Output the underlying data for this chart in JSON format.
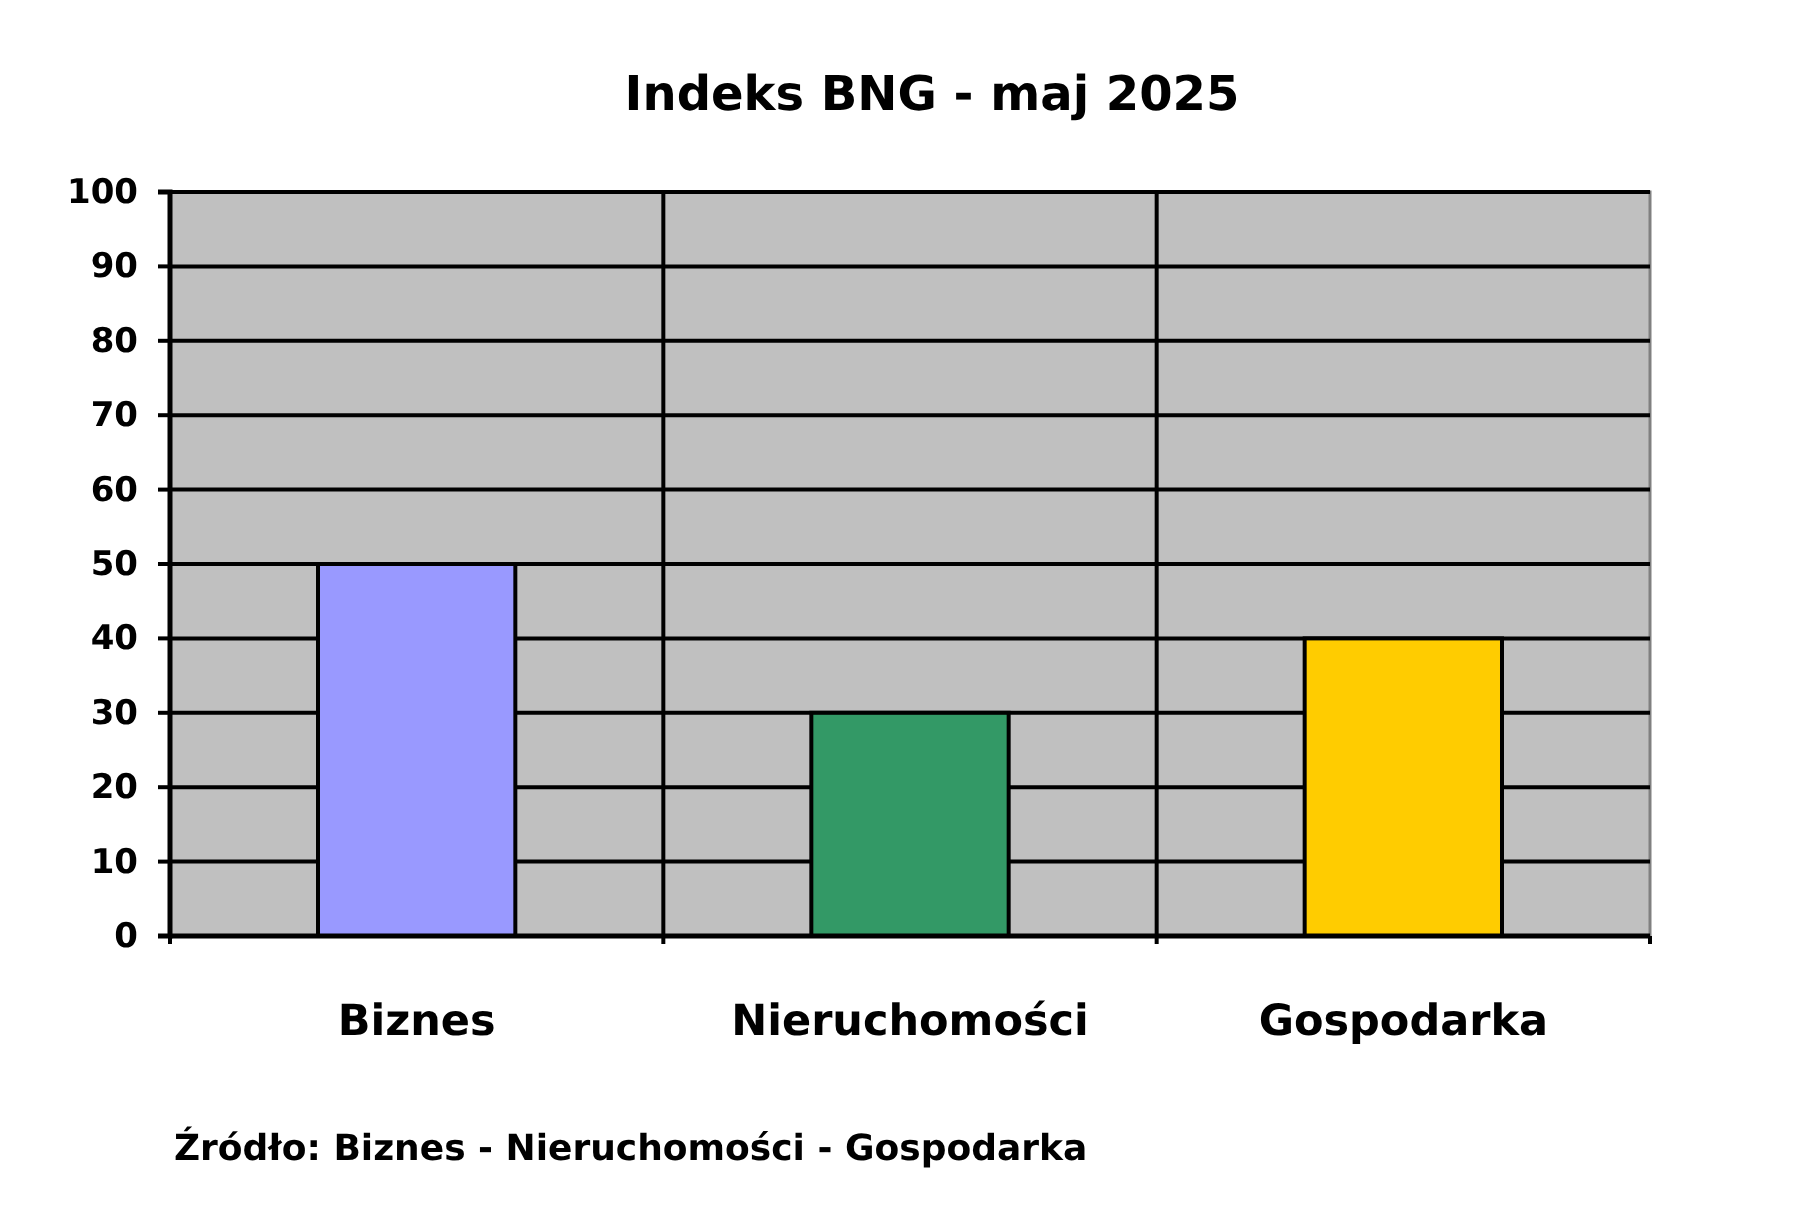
{
  "chart_data": {
    "type": "bar",
    "title": "Indeks BNG - maj 2025",
    "categories": [
      "Biznes",
      "Nieruchomości",
      "Gospodarka"
    ],
    "values": [
      50,
      30,
      40
    ],
    "colors": [
      "#9999ff",
      "#339966",
      "#ffcc00"
    ],
    "ylim": [
      0,
      100
    ],
    "yticks": [
      0,
      10,
      20,
      30,
      40,
      50,
      60,
      70,
      80,
      90,
      100
    ],
    "grid": true,
    "annotations": [
      "Źródło: Biznes - Nieruchomości - Gospodarka"
    ]
  }
}
